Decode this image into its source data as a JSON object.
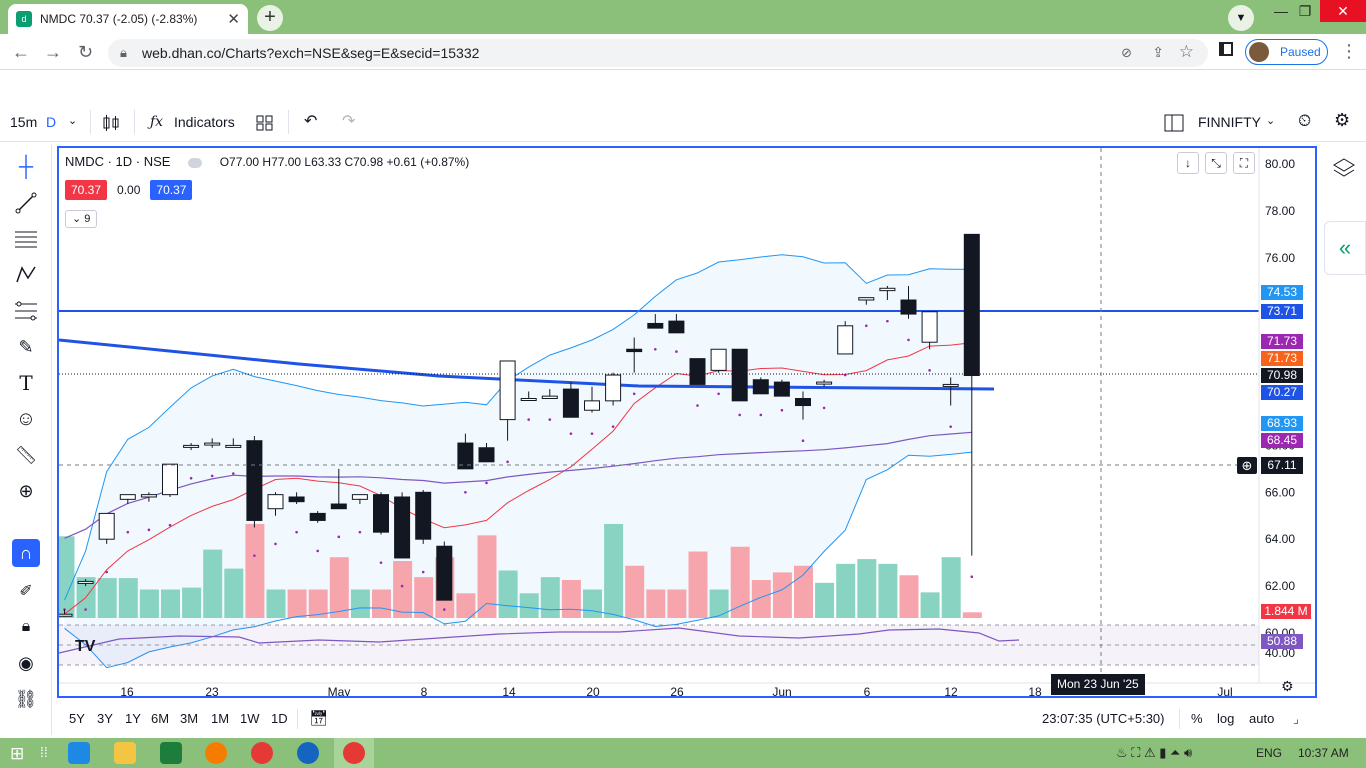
{
  "browser": {
    "tab_title": "NMDC 70.37 (-2.05) (-2.83%)",
    "url": "web.dhan.co/Charts?exch=NSE&seg=E&secid=15332",
    "profile_status": "Paused"
  },
  "toolbar": {
    "interval": "15m",
    "chart_style": "D",
    "indicators_label": "Indicators",
    "symbol_search": "FINNIFTY"
  },
  "legend": {
    "symbol": "NMDC · 1D · NSE",
    "ohlc": "O77.00 H77.00 L63.33 C70.98 +0.61 (+0.87%)",
    "bid": "70.37",
    "spread": "0.00",
    "ask": "70.37",
    "indicator_count": "9"
  },
  "price_axis": {
    "ticks": [
      "80.00",
      "78.00",
      "76.00",
      "74.00",
      "72.00",
      "70.00",
      "68.00",
      "66.00",
      "64.00",
      "62.00",
      "60.00",
      "40.00"
    ],
    "labels": [
      {
        "text": "74.53",
        "color": "#2196f3"
      },
      {
        "text": "73.71",
        "color": "#1e53e5"
      },
      {
        "text": "71.73",
        "color": "#9c27b0"
      },
      {
        "text": "71.73",
        "color": "#f7631b"
      },
      {
        "text": "70.98",
        "color": "#131722"
      },
      {
        "text": "70.27",
        "color": "#1e53e5"
      },
      {
        "text": "68.93",
        "color": "#2196f3"
      },
      {
        "text": "68.45",
        "color": "#9c27b0"
      }
    ],
    "crosshair_price": "67.11",
    "volume_label": "1.844 M",
    "rsi_label": "50.88"
  },
  "time_axis": {
    "ticks": [
      "16",
      "23",
      "May",
      "8",
      "14",
      "20",
      "26",
      "Jun",
      "6",
      "12",
      "18",
      "Jul"
    ],
    "crosshair_date": "Mon 23 Jun '25"
  },
  "bottom_bar": {
    "ranges": [
      "5Y",
      "3Y",
      "1Y",
      "6M",
      "3M",
      "1M",
      "1W",
      "1D"
    ],
    "clock": "23:07:35 (UTC+5:30)",
    "percent": "%",
    "log": "log",
    "auto": "auto"
  },
  "taskbar": {
    "language": "ENG",
    "time": "10:37 AM"
  },
  "colors": {
    "up": "#ffffff",
    "down": "#131722",
    "vol_up": "#89d3c2",
    "vol_down": "#f7a5ad",
    "bb_band": "#2196f3",
    "sma_red": "#f23645",
    "sma_purple": "#7e57c2",
    "trendline": "#1e53e5"
  },
  "chart_data": {
    "type": "candlestick",
    "series_ohlc": [
      [
        60.8,
        61.0,
        60.7,
        60.8
      ],
      [
        62.2,
        62.3,
        62.0,
        62.2
      ],
      [
        64.0,
        65.0,
        63.8,
        65.1
      ],
      [
        65.7,
        65.8,
        65.5,
        65.9
      ],
      [
        65.8,
        66.0,
        65.6,
        65.9
      ],
      [
        65.9,
        67.0,
        65.8,
        67.2
      ],
      [
        68.0,
        68.1,
        67.8,
        68.0
      ],
      [
        68.1,
        68.3,
        67.9,
        68.1
      ],
      [
        68.0,
        68.3,
        68.0,
        68.0
      ],
      [
        68.2,
        68.4,
        64.5,
        64.8
      ],
      [
        65.3,
        66.0,
        65.0,
        65.9
      ],
      [
        65.8,
        66.0,
        65.5,
        65.6
      ],
      [
        65.1,
        65.2,
        64.7,
        64.8
      ],
      [
        65.5,
        67.0,
        65.3,
        65.3
      ],
      [
        65.7,
        65.9,
        65.5,
        65.9
      ],
      [
        65.9,
        66.0,
        64.2,
        64.3
      ],
      [
        65.8,
        66.0,
        63.2,
        63.2
      ],
      [
        66.0,
        66.1,
        63.8,
        64.0
      ],
      [
        63.7,
        63.9,
        61.9,
        61.4
      ],
      [
        68.1,
        68.5,
        67.2,
        67.0
      ],
      [
        67.9,
        68.1,
        67.3,
        67.3
      ],
      [
        69.1,
        70.1,
        68.2,
        71.6
      ],
      [
        70.0,
        70.3,
        70.0,
        70.0
      ],
      [
        70.0,
        70.4,
        70.0,
        70.1
      ],
      [
        70.4,
        70.7,
        69.4,
        69.2
      ],
      [
        69.5,
        70.5,
        69.4,
        69.9
      ],
      [
        69.9,
        71.1,
        69.7,
        71.0
      ],
      [
        72.1,
        72.6,
        71.1,
        72.0
      ],
      [
        73.2,
        73.6,
        73.0,
        73.0
      ],
      [
        73.3,
        73.6,
        72.9,
        72.8
      ],
      [
        71.7,
        71.7,
        70.6,
        70.6
      ],
      [
        71.2,
        72.0,
        71.1,
        72.1
      ],
      [
        72.1,
        72.1,
        70.2,
        69.9
      ],
      [
        70.8,
        70.9,
        70.2,
        70.2
      ],
      [
        70.7,
        70.8,
        70.4,
        70.1
      ],
      [
        70.0,
        70.3,
        69.1,
        69.7
      ],
      [
        70.7,
        70.8,
        70.5,
        70.7
      ],
      [
        71.9,
        73.3,
        71.9,
        73.1
      ],
      [
        74.2,
        74.3,
        74.0,
        74.3
      ],
      [
        74.6,
        74.8,
        74.2,
        74.7
      ],
      [
        74.2,
        74.8,
        73.4,
        73.6
      ],
      [
        72.4,
        73.6,
        72.1,
        73.7
      ],
      [
        70.6,
        70.9,
        69.7,
        70.6
      ],
      [
        77.0,
        77.0,
        63.3,
        70.98
      ]
    ],
    "volume_relative": [
      0.86,
      0.43,
      0.42,
      0.42,
      0.3,
      0.3,
      0.32,
      0.72,
      0.52,
      0.99,
      0.3,
      0.3,
      0.3,
      0.64,
      0.3,
      0.3,
      0.6,
      0.43,
      0.64,
      0.26,
      0.87,
      0.5,
      0.26,
      0.43,
      0.4,
      0.3,
      0.99,
      0.55,
      0.3,
      0.3,
      0.7,
      0.3,
      0.75,
      0.4,
      0.48,
      0.55,
      0.37,
      0.57,
      0.62,
      0.57,
      0.45,
      0.27,
      0.64,
      0.06
    ],
    "rsi_value": "50.88"
  }
}
